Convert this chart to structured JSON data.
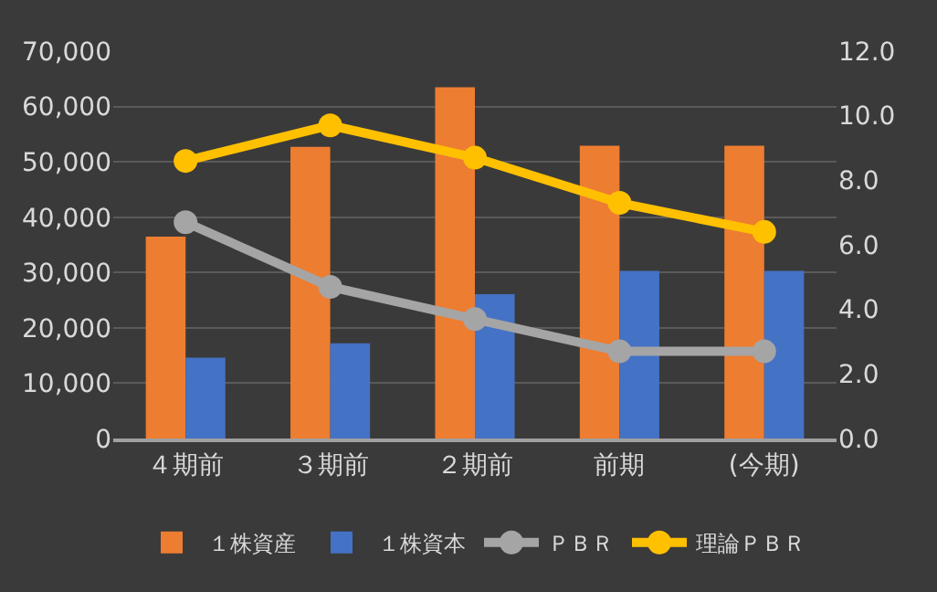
{
  "chart_data": {
    "type": "bar",
    "categories": [
      "４期前",
      "３期前",
      "２期前",
      "前期",
      "(今期)"
    ],
    "series": [
      {
        "name": "１株資産",
        "color": "#ed7d31",
        "values": [
          36500,
          52700,
          63500,
          52900,
          52900
        ]
      },
      {
        "name": "１株資本",
        "color": "#4472c4",
        "values": [
          14600,
          17200,
          26100,
          30300,
          30300
        ]
      },
      {
        "name": "ＰＢＲ",
        "type": "line",
        "axis": "y2",
        "color": "#a5a5a5",
        "values": [
          6.7,
          4.7,
          3.7,
          2.7,
          2.7
        ]
      },
      {
        "name": "理論ＰＢＲ",
        "type": "line",
        "axis": "y2",
        "color": "#ffc000",
        "values": [
          8.6,
          9.7,
          8.7,
          7.3,
          6.4
        ]
      }
    ],
    "ylim": [
      0,
      70000
    ],
    "yticks": [
      {
        "value": 0,
        "label": "0"
      },
      {
        "value": 10000,
        "label": "10,000"
      },
      {
        "value": 20000,
        "label": "20,000"
      },
      {
        "value": 30000,
        "label": "30,000"
      },
      {
        "value": 40000,
        "label": "40,000"
      },
      {
        "value": 50000,
        "label": "50,000"
      },
      {
        "value": 60000,
        "label": "60,000"
      },
      {
        "value": 70000,
        "label": "70,000"
      }
    ],
    "y2lim": [
      0,
      12
    ],
    "y2ticks": [
      {
        "value": 0,
        "label": "0.0"
      },
      {
        "value": 2,
        "label": "2.0"
      },
      {
        "value": 4,
        "label": "4.0"
      },
      {
        "value": 6,
        "label": "6.0"
      },
      {
        "value": 8,
        "label": "8.0"
      },
      {
        "value": 10,
        "label": "10.0"
      },
      {
        "value": 12,
        "label": "12.0"
      }
    ],
    "grid": "y",
    "legend": "bottom",
    "marker": "circle",
    "line_style": "solid"
  }
}
